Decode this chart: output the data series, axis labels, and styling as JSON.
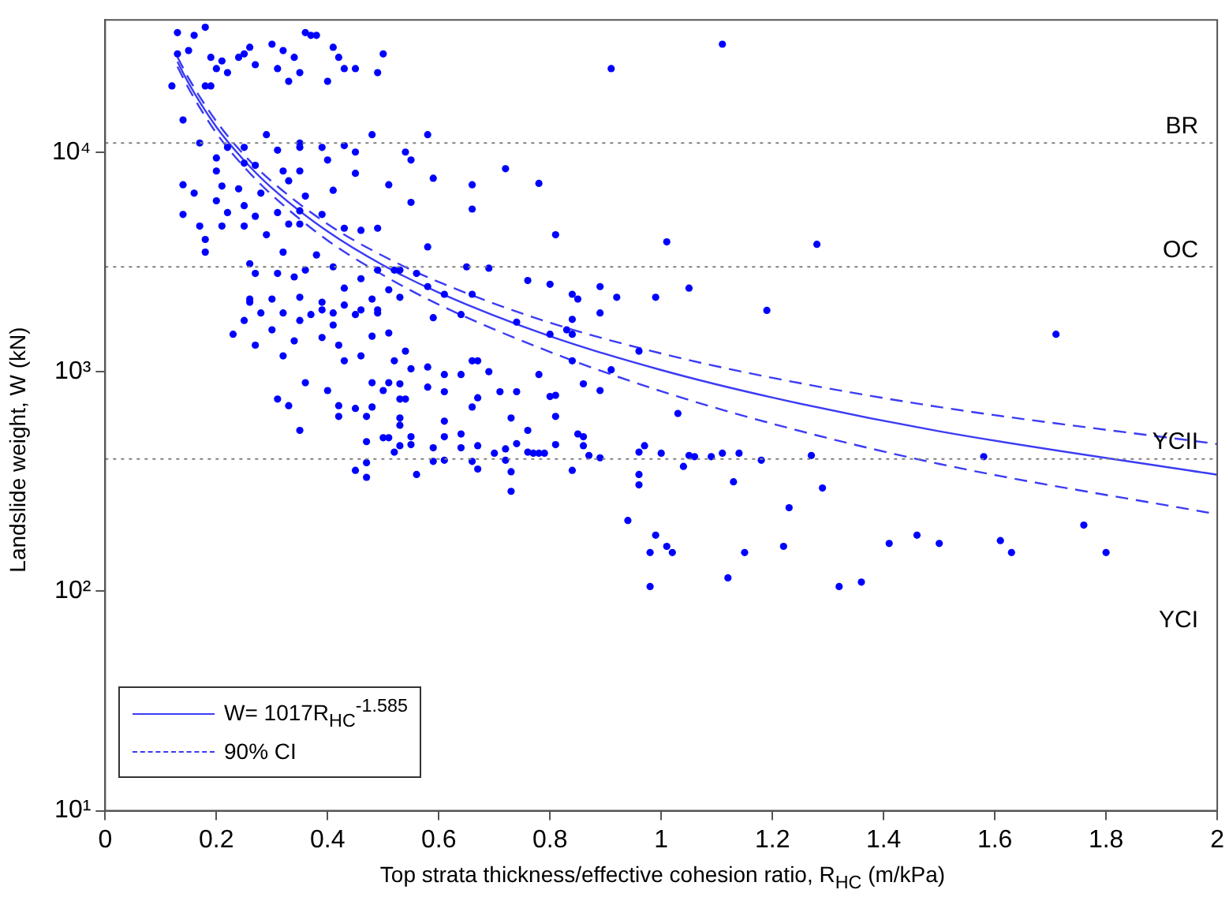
{
  "chart_data": {
    "type": "scatter",
    "xlabel": "Top strata thickness/effective cohesion ratio, R$_{HC}$ (m/kPa)",
    "ylabel": "Landslide weight, W (kN)",
    "xlim": [
      0,
      2
    ],
    "ylim": [
      10,
      40000
    ],
    "xticks": [
      0,
      0.2,
      0.4,
      0.6,
      0.8,
      1,
      1.2,
      1.4,
      1.6,
      1.8,
      2
    ],
    "yticks": [
      {
        "value": 10,
        "label": "10¹"
      },
      {
        "value": 100,
        "label": "10²"
      },
      {
        "value": 1000,
        "label": "10³"
      },
      {
        "value": 10000,
        "label": "10⁴"
      }
    ],
    "log": "y",
    "grid": false,
    "legend": "bottom left",
    "ref_lines": [
      {
        "axis": "y",
        "value": 11000,
        "label": "BR",
        "color": "#808080",
        "line_style": "dotted"
      },
      {
        "axis": "y",
        "value": 3000,
        "label": "OC",
        "color": "#808080",
        "line_style": "dotted"
      },
      {
        "axis": "y",
        "value": 400,
        "label": "YCII",
        "color": "#808080",
        "line_style": "dotted"
      }
    ],
    "annotations": [
      "YCI"
    ],
    "series": [
      {
        "type": "scatter",
        "color": "#0000ff",
        "marker": "circle",
        "x": [
          0.13,
          0.16,
          0.18,
          0.13,
          0.15,
          0.19,
          0.2,
          0.21,
          0.22,
          0.24,
          0.25,
          0.26,
          0.27,
          0.3,
          0.32,
          0.31,
          0.33,
          0.34,
          0.35,
          0.36,
          0.37,
          0.38,
          0.4,
          0.41,
          0.42,
          0.43,
          0.45,
          0.49,
          0.5,
          0.12,
          0.18,
          0.19,
          0.14,
          0.91,
          1.11,
          0.17,
          0.29,
          0.35,
          0.48,
          0.58,
          0.2,
          0.22,
          0.25,
          0.31,
          0.35,
          0.39,
          0.43,
          0.45,
          0.54,
          0.55,
          0.14,
          0.2,
          0.25,
          0.27,
          0.32,
          0.35,
          0.4,
          0.45,
          0.51,
          0.59,
          0.66,
          0.72,
          0.78,
          0.16,
          0.21,
          0.24,
          0.28,
          0.33,
          0.36,
          0.14,
          0.2,
          0.22,
          0.25,
          0.27,
          0.31,
          0.35,
          0.39,
          0.41,
          0.55,
          0.66,
          0.81,
          0.17,
          0.21,
          0.25,
          0.33,
          0.35,
          0.43,
          0.46,
          0.49,
          0.18,
          0.18,
          0.32,
          0.29,
          0.58,
          1.01,
          1.28,
          1.19,
          1.71,
          0.8,
          0.84,
          0.85,
          0.89,
          0.92,
          0.99,
          1.05,
          0.89,
          0.84,
          0.83,
          0.84,
          0.8,
          0.96,
          0.84,
          0.91,
          0.26,
          0.27,
          0.31,
          0.34,
          0.36,
          0.38,
          0.41,
          0.43,
          0.46,
          0.49,
          0.52,
          0.53,
          0.56,
          0.65,
          0.69,
          0.58,
          0.61,
          0.66,
          0.76,
          0.3,
          0.35,
          0.39,
          0.43,
          0.48,
          0.51,
          0.53,
          0.26,
          0.28,
          0.32,
          0.37,
          0.41,
          0.46,
          0.49,
          0.59,
          0.64,
          0.74,
          0.23,
          0.26,
          0.25,
          0.27,
          0.3,
          0.32,
          0.34,
          0.31,
          0.33,
          0.35,
          0.36,
          0.35,
          0.39,
          0.39,
          0.41,
          0.42,
          0.4,
          0.43,
          0.45,
          0.46,
          0.48,
          0.49,
          0.51,
          0.52,
          0.48,
          0.5,
          0.42,
          0.42,
          0.45,
          0.47,
          0.48,
          0.51,
          0.53,
          0.53,
          0.54,
          0.55,
          0.54,
          0.58,
          0.58,
          0.61,
          0.61,
          0.64,
          0.66,
          0.67,
          0.69,
          0.66,
          0.67,
          0.71,
          0.74,
          0.78,
          0.8,
          0.81,
          0.73,
          0.76,
          0.81,
          0.53,
          0.53,
          0.55,
          0.61,
          0.61,
          0.64,
          0.5,
          0.51,
          0.47,
          0.52,
          0.53,
          0.55,
          0.59,
          0.61,
          0.64,
          0.67,
          0.66,
          0.7,
          0.72,
          0.74,
          0.76,
          0.77,
          0.79,
          0.72,
          0.59,
          0.67,
          0.73,
          0.47,
          0.45,
          0.47,
          0.56,
          0.73,
          0.81,
          0.86,
          0.89,
          0.85,
          0.86,
          0.86,
          0.87,
          0.89,
          0.84,
          0.78,
          0.96,
          0.97,
          1.0,
          0.96,
          0.96,
          1.03,
          1.04,
          1.05,
          1.06,
          1.09,
          1.11,
          1.14,
          1.18,
          1.13,
          0.94,
          0.99,
          0.98,
          1.01,
          1.02,
          0.98,
          1.12,
          1.15,
          1.22,
          1.23,
          1.27,
          1.29,
          1.32,
          1.36,
          1.41,
          1.46,
          1.5,
          1.58,
          1.61,
          1.63,
          1.76,
          1.8
        ],
        "values": [
          35000,
          34000,
          37000,
          28000,
          29000,
          27000,
          24000,
          26000,
          23000,
          27000,
          28000,
          30000,
          25000,
          31000,
          29000,
          24000,
          21000,
          27000,
          23000,
          35000,
          34000,
          34000,
          21000,
          30000,
          27000,
          24000,
          24000,
          23000,
          28000,
          20000,
          20000,
          20000,
          14000,
          24000,
          31000,
          11000,
          12000,
          11000,
          12000,
          12000,
          9400,
          10500,
          10500,
          10200,
          10500,
          10500,
          10700,
          10000,
          10000,
          9200,
          7100,
          8200,
          8900,
          8700,
          8200,
          8200,
          9200,
          8000,
          7100,
          7600,
          7100,
          8400,
          7200,
          6500,
          7000,
          6800,
          6500,
          7400,
          6300,
          5200,
          6000,
          5300,
          5700,
          5100,
          5300,
          5400,
          5200,
          6700,
          5900,
          5500,
          4200,
          4600,
          4600,
          4600,
          4700,
          4700,
          4500,
          4400,
          4500,
          4000,
          3500,
          3500,
          4200,
          3700,
          3900,
          3800,
          1900,
          1480,
          2500,
          2250,
          2140,
          2440,
          2180,
          2180,
          2400,
          1850,
          1730,
          1550,
          1480,
          1480,
          1240,
          1120,
          1020,
          3100,
          2800,
          2800,
          2700,
          2900,
          3400,
          3000,
          2400,
          2650,
          2900,
          2900,
          2900,
          2800,
          3000,
          2960,
          2440,
          2250,
          2250,
          2600,
          2140,
          2180,
          2070,
          2010,
          2140,
          2360,
          2180,
          2140,
          1850,
          1850,
          1820,
          1850,
          1910,
          1850,
          1760,
          1820,
          1680,
          1480,
          2070,
          1710,
          1320,
          1550,
          1180,
          1380,
          750,
          700,
          540,
          890,
          1710,
          1910,
          1430,
          1630,
          1320,
          820,
          1120,
          1820,
          1180,
          1450,
          1910,
          1500,
          1120,
          890,
          820,
          700,
          625,
          680,
          625,
          690,
          890,
          880,
          750,
          750,
          1030,
          1240,
          1050,
          850,
          970,
          810,
          970,
          1120,
          1120,
          1000,
          690,
          760,
          810,
          810,
          970,
          770,
          625,
          615,
          540,
          465,
          615,
          570,
          505,
          595,
          505,
          520,
          500,
          500,
          480,
          430,
          460,
          465,
          450,
          395,
          450,
          460,
          390,
          425,
          445,
          470,
          430,
          425,
          425,
          395,
          390,
          360,
          350,
          385,
          355,
          330,
          340,
          285,
          780,
          880,
          820,
          520,
          505,
          460,
          415,
          405,
          355,
          425,
          430,
          460,
          425,
          340,
          305,
          645,
          370,
          415,
          410,
          410,
          425,
          425,
          395,
          315,
          210,
          180,
          150,
          160,
          150,
          105,
          115,
          150,
          160,
          240,
          415,
          295,
          105,
          110,
          165,
          180,
          165,
          410,
          170,
          150,
          200,
          150
        ]
      },
      {
        "type": "line",
        "name": "W= 1017R$_{HC}$$^{-1.585}$",
        "color": "#3b3bf5",
        "marker": "none",
        "line_style": "solid",
        "x": [
          0.13,
          0.15,
          0.2,
          0.25,
          0.3,
          0.4,
          0.5,
          0.6,
          0.8,
          1.0,
          1.2,
          1.5,
          2.0
        ],
        "values": [
          25800,
          20600,
          13000,
          9150,
          6850,
          4350,
          3050,
          2290,
          1450,
          1017,
          762,
          535,
          339
        ]
      },
      {
        "type": "line",
        "name": "90% CI",
        "color": "#3b3bf5",
        "marker": "none",
        "line_style": "dashed",
        "x": [
          0.13,
          0.15,
          0.2,
          0.25,
          0.3,
          0.4,
          0.5,
          0.6,
          0.8,
          1.0,
          1.2,
          1.5,
          2.0
        ],
        "values": [
          27100,
          21700,
          13800,
          9700,
          7330,
          4700,
          3360,
          2560,
          1670,
          1210,
          937,
          690,
          468
        ]
      },
      {
        "type": "line",
        "color": "#3b3bf5",
        "marker": "none",
        "line_style": "dashed",
        "x": [
          0.13,
          0.15,
          0.2,
          0.25,
          0.3,
          0.4,
          0.5,
          0.6,
          0.8,
          1.0,
          1.2,
          1.5,
          2.0
        ],
        "values": [
          24500,
          19500,
          12200,
          8550,
          6370,
          3960,
          2750,
          2020,
          1230,
          814,
          579,
          380,
          224
        ]
      }
    ]
  }
}
